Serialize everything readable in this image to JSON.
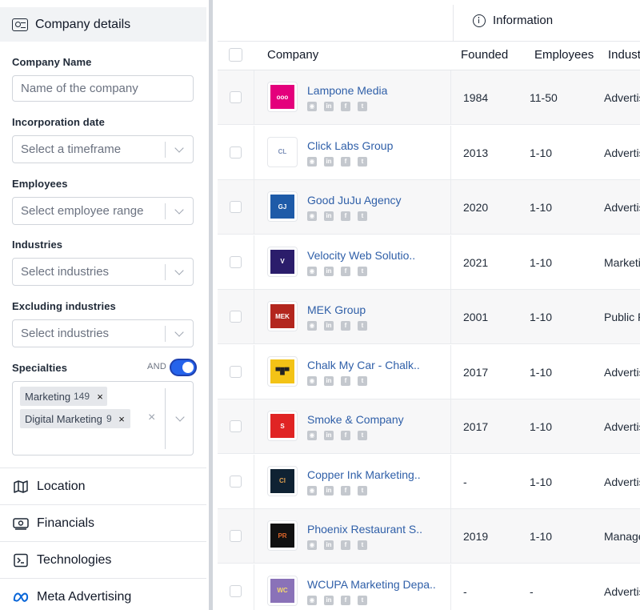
{
  "sidebar": {
    "header_title": "Company details",
    "company_name": {
      "label": "Company Name",
      "placeholder": "Name of the company",
      "value": ""
    },
    "incorporation": {
      "label": "Incorporation date",
      "placeholder": "Select a timeframe"
    },
    "employees": {
      "label": "Employees",
      "placeholder": "Select employee range"
    },
    "industries": {
      "label": "Industries",
      "placeholder": "Select industries"
    },
    "excluding": {
      "label": "Excluding industries",
      "placeholder": "Select industries"
    },
    "specialties": {
      "label": "Specialties",
      "and_label": "AND",
      "toggle_on": true,
      "chips": [
        {
          "label": "Marketing",
          "count": "149",
          "remove": "×"
        },
        {
          "label": "Digital Marketing",
          "count": "9",
          "remove": "×"
        }
      ],
      "clear_symbol": "×"
    },
    "sections": [
      {
        "label": "Location",
        "icon": "map-icon"
      },
      {
        "label": "Financials",
        "icon": "money-icon"
      },
      {
        "label": "Technologies",
        "icon": "terminal-icon"
      },
      {
        "label": "Meta Advertising",
        "icon": "meta-icon"
      }
    ]
  },
  "table": {
    "group_header": "Information",
    "columns": [
      "Company",
      "Founded",
      "Employees",
      "Industry"
    ],
    "rows": [
      {
        "name": "Lampone Media",
        "founded": "1984",
        "employees": "11-50",
        "industry": "Advertising",
        "logo_bg": "#e4007c",
        "logo_fg": "#ffffff",
        "logo_text": "ooo"
      },
      {
        "name": "Click Labs Group",
        "founded": "2013",
        "employees": "1-10",
        "industry": "Advertising",
        "logo_bg": "#ffffff",
        "logo_fg": "#7c8fb8",
        "logo_text": "CL"
      },
      {
        "name": "Good JuJu Agency",
        "founded": "2020",
        "employees": "1-10",
        "industry": "Advertising",
        "logo_bg": "#1e5ba8",
        "logo_fg": "#ffffff",
        "logo_text": "GJ"
      },
      {
        "name": "Velocity Web Solutio..",
        "founded": "2021",
        "employees": "1-10",
        "industry": "Marketing",
        "logo_bg": "#2b1d6b",
        "logo_fg": "#ffffff",
        "logo_text": "V"
      },
      {
        "name": "MEK Group",
        "founded": "2001",
        "employees": "1-10",
        "industry": "Public R",
        "logo_bg": "#b3261e",
        "logo_fg": "#ffffff",
        "logo_text": "MEK"
      },
      {
        "name": "Chalk My Car - Chalk..",
        "founded": "2017",
        "employees": "1-10",
        "industry": "Advertising",
        "logo_bg": "#f3c316",
        "logo_fg": "#222222",
        "logo_text": "▀█▀"
      },
      {
        "name": "Smoke & Company",
        "founded": "2017",
        "employees": "1-10",
        "industry": "Advertising",
        "logo_bg": "#e02424",
        "logo_fg": "#ffffff",
        "logo_text": "S"
      },
      {
        "name": "Copper Ink Marketing..",
        "founded": "-",
        "employees": "1-10",
        "industry": "Advertising",
        "logo_bg": "#0f2233",
        "logo_fg": "#e0a050",
        "logo_text": "CI"
      },
      {
        "name": "Phoenix Restaurant S..",
        "founded": "2019",
        "employees": "1-10",
        "industry": "Management",
        "logo_bg": "#111111",
        "logo_fg": "#e0662a",
        "logo_text": "PR"
      },
      {
        "name": "WCUPA Marketing Depa..",
        "founded": "-",
        "employees": "-",
        "industry": "Advertising",
        "logo_bg": "#8a72b8",
        "logo_fg": "#f5d76e",
        "logo_text": "WC"
      }
    ],
    "social_icons": [
      "globe-icon",
      "linkedin-icon",
      "facebook-icon",
      "twitter-icon"
    ]
  },
  "colors": {
    "link": "#2f5fa8",
    "toggle": "#2563eb",
    "header_bg": "#f1f3f5"
  }
}
